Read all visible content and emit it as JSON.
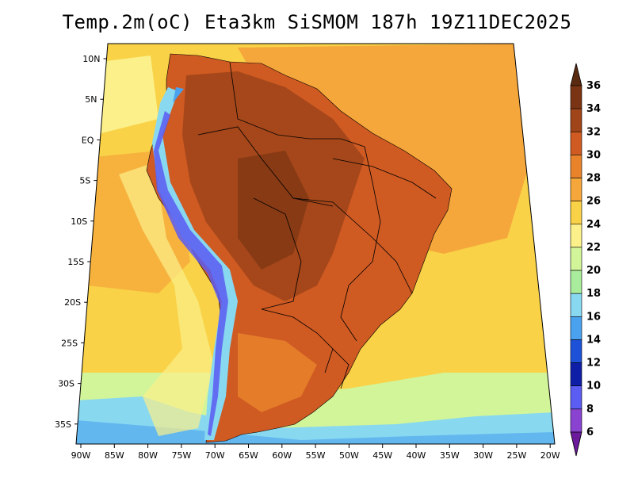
{
  "title": "Temp.2m(oC) Eta3km SiSMOM 187h 19Z11DEC2025",
  "lat_labels": [
    "10N",
    "5N",
    "EQ",
    "5S",
    "10S",
    "15S",
    "20S",
    "25S",
    "30S",
    "35S"
  ],
  "lon_labels": [
    "90W",
    "85W",
    "80W",
    "75W",
    "70W",
    "65W",
    "60W",
    "55W",
    "50W",
    "45W",
    "40W",
    "35W",
    "30W",
    "25W",
    "20W"
  ],
  "colorbar": {
    "labels": [
      "36",
      "34",
      "32",
      "30",
      "28",
      "26",
      "24",
      "22",
      "20",
      "18",
      "16",
      "14",
      "12",
      "10",
      "8",
      "6"
    ],
    "colors": [
      "#5a2a10",
      "#7b3413",
      "#a0451a",
      "#cf5a22",
      "#e8832c",
      "#f5a73b",
      "#f9d247",
      "#fbf08a",
      "#d2f59a",
      "#a9ec9c",
      "#88d8f0",
      "#4aa2ee",
      "#1d52d8",
      "#0f1ea6",
      "#5b5cf2",
      "#8a42d0",
      "#6a1a9a"
    ]
  },
  "colors": {
    "ocean_warm": "#f5a73b",
    "ocean_mid": "#f9d247",
    "ocean_cool": "#fbf08a",
    "land_hot": "#a0451a",
    "land_mid": "#cf5a22",
    "andes_cold": "#4aa2ee",
    "andes_colder": "#5b5cf2",
    "border": "#000000"
  },
  "map_data": {
    "type": "temperature-field",
    "variable": "2m temperature (oC)",
    "model": "Eta3km SiSMOM",
    "lon_range": [
      -90,
      -20
    ],
    "lat_range": [
      -37,
      11
    ]
  }
}
